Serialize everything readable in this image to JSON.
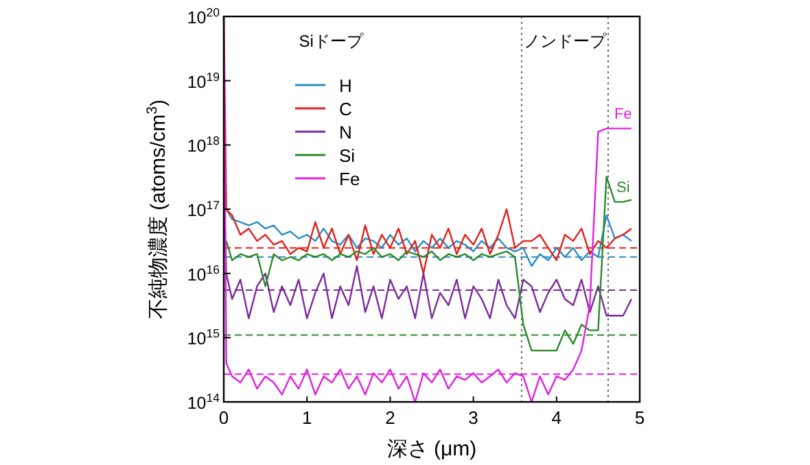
{
  "chart_data": {
    "type": "line",
    "xlabel": "深さ (μm)",
    "ylabel": "不純物濃度 (atoms/cm$^{3}$)",
    "log": "y",
    "grid": false,
    "legend": "top left",
    "line_style": "solid",
    "marker": "none",
    "xlim": [
      0,
      5
    ],
    "xticks": [
      0,
      1,
      2,
      3,
      4,
      5
    ],
    "ylim": [
      100000000000000.0,
      1e+20
    ],
    "yticks": [
      {
        "value": 100000000000000.0,
        "label": "10$^{14}$"
      },
      {
        "value": 1000000000000000.0,
        "label": "10$^{15}$"
      },
      {
        "value": 1e+16,
        "label": "10$^{16}$"
      },
      {
        "value": 1e+17,
        "label": "10$^{17}$"
      },
      {
        "value": 1e+18,
        "label": "10$^{18}$"
      },
      {
        "value": 1e+19,
        "label": "10$^{19}$"
      },
      {
        "value": 1e+20,
        "label": "10$^{20}$"
      }
    ],
    "x": [
      0,
      0.03,
      0.1,
      0.2,
      0.3,
      0.4,
      0.5,
      0.6,
      0.7,
      0.8,
      0.9,
      1.0,
      1.1,
      1.2,
      1.3,
      1.4,
      1.5,
      1.6,
      1.7,
      1.8,
      1.9,
      2.0,
      2.1,
      2.2,
      2.3,
      2.4,
      2.5,
      2.6,
      2.7,
      2.8,
      2.9,
      3.0,
      3.1,
      3.2,
      3.3,
      3.4,
      3.5,
      3.6,
      3.7,
      3.8,
      3.9,
      4.0,
      4.1,
      4.2,
      4.3,
      4.4,
      4.5,
      4.6,
      4.7,
      4.8,
      4.9
    ],
    "series": [
      {
        "name": "H",
        "color": "#2b8cc4",
        "values": [
          null,
          1e+17,
          7e+16,
          6.3e+16,
          5.6e+16,
          6.3e+16,
          5e+16,
          5.6e+16,
          4e+16,
          4.5e+16,
          3.5e+16,
          4e+16,
          3.2e+16,
          5e+16,
          3.2e+16,
          2.8e+16,
          4e+16,
          2.5e+16,
          3.5e+16,
          3.2e+16,
          2.5e+16,
          4e+16,
          2.8e+16,
          3.5e+16,
          2.2e+16,
          3.2e+16,
          2.5e+16,
          3.5e+16,
          2.5e+16,
          3.2e+16,
          2.8e+16,
          2.2e+16,
          3.2e+16,
          2.5e+16,
          3.5e+16,
          2.5e+16,
          2.2e+16,
          2.5e+16,
          1.3e+16,
          2e+16,
          1.6e+16,
          2.5e+16,
          1.8e+16,
          2.5e+16,
          1.6e+16,
          2.2e+16,
          1.8e+16,
          8e+16,
          3.5e+16,
          4e+16,
          3.2e+16
        ]
      },
      {
        "name": "C",
        "color": "#e0201b",
        "values": [
          1e+20,
          1e+17,
          8e+16,
          4e+16,
          5e+16,
          3.2e+16,
          4e+16,
          2.8e+16,
          3.2e+16,
          2e+16,
          2.5e+16,
          2.2e+16,
          6.3e+16,
          2.5e+16,
          5e+16,
          2e+16,
          4e+16,
          1.6e+16,
          5.6e+16,
          2e+16,
          4e+16,
          2.5e+16,
          5e+16,
          2e+16,
          3.2e+16,
          1e+16,
          4e+16,
          2.5e+16,
          5e+16,
          2e+16,
          4e+16,
          2.8e+16,
          5e+16,
          2e+16,
          4e+16,
          1e+17,
          2.5e+16,
          3.2e+16,
          3.2e+16,
          4e+16,
          2.5e+16,
          1.6e+16,
          4e+16,
          3.2e+16,
          5e+16,
          2e+16,
          3.2e+16,
          2.5e+16,
          3.5e+16,
          4e+16,
          5e+16
        ]
      },
      {
        "name": "N",
        "color": "#7b2a9a",
        "values": [
          3e+17,
          1e+16,
          4000000000000000.0,
          8000000000000000.0,
          2000000000000000.0,
          6300000000000000.0,
          1e+16,
          2500000000000000.0,
          6300000000000000.0,
          3200000000000000.0,
          8000000000000000.0,
          2000000000000000.0,
          5000000000000000.0,
          1e+16,
          2000000000000000.0,
          6300000000000000.0,
          3200000000000000.0,
          1.3e+16,
          2500000000000000.0,
          6300000000000000.0,
          2000000000000000.0,
          8000000000000000.0,
          4000000000000000.0,
          6300000000000000.0,
          2000000000000000.0,
          1e+16,
          2000000000000000.0,
          5000000000000000.0,
          3200000000000000.0,
          8000000000000000.0,
          2000000000000000.0,
          6300000000000000.0,
          4000000000000000.0,
          2000000000000000.0,
          8000000000000000.0,
          3200000000000000.0,
          2000000000000000.0,
          8000000000000000.0,
          6300000000000000.0,
          2500000000000000.0,
          5000000000000000.0,
          8000000000000000.0,
          4000000000000000.0,
          3200000000000000.0,
          8000000000000000.0,
          2500000000000000.0,
          6300000000000000.0,
          2200000000000000.0,
          2200000000000000.0,
          2200000000000000.0,
          4000000000000000.0
        ]
      },
      {
        "name": "Si",
        "color": "#2a8a2a",
        "values": [
          null,
          3.2e+16,
          1.6e+16,
          2e+16,
          1.8e+16,
          2e+16,
          6300000000000000.0,
          2e+16,
          1.6e+16,
          1.8e+16,
          1.6e+16,
          2e+16,
          1.8e+16,
          2e+16,
          1.6e+16,
          2e+16,
          1.8e+16,
          2.2e+16,
          2e+16,
          2.5e+16,
          1.8e+16,
          2e+16,
          1.6e+16,
          2.2e+16,
          2e+16,
          1.8e+16,
          2.2e+16,
          1.6e+16,
          2e+16,
          1.8e+16,
          2e+16,
          1.6e+16,
          2e+16,
          1.8e+16,
          2e+16,
          2.2e+16,
          1.8e+16,
          1600000000000000.0,
          630000000000000.0,
          630000000000000.0,
          630000000000000.0,
          630000000000000.0,
          1300000000000000.0,
          800000000000000.0,
          1600000000000000.0,
          1300000000000000.0,
          1300000000000000.0,
          3.2e+17,
          1.3e+17,
          1.3e+17,
          1.4e+17
        ]
      },
      {
        "name": "Fe",
        "color": "#e020e0",
        "values": [
          1e+20,
          400000000000000.0,
          250000000000000.0,
          200000000000000.0,
          320000000000000.0,
          160000000000000.0,
          250000000000000.0,
          200000000000000.0,
          130000000000000.0,
          250000000000000.0,
          160000000000000.0,
          320000000000000.0,
          130000000000000.0,
          250000000000000.0,
          200000000000000.0,
          320000000000000.0,
          160000000000000.0,
          250000000000000.0,
          130000000000000.0,
          280000000000000.0,
          200000000000000.0,
          320000000000000.0,
          160000000000000.0,
          250000000000000.0,
          100000000000000.0,
          280000000000000.0,
          200000000000000.0,
          320000000000000.0,
          160000000000000.0,
          250000000000000.0,
          220000000000000.0,
          280000000000000.0,
          200000000000000.0,
          250000000000000.0,
          320000000000000.0,
          200000000000000.0,
          280000000000000.0,
          250000000000000.0,
          100000000000000.0,
          250000000000000.0,
          130000000000000.0,
          250000000000000.0,
          220000000000000.0,
          320000000000000.0,
          630000000000000.0,
          3200000000000000.0,
          1.6e+18,
          1.8e+18,
          1.8e+18,
          1.8e+18,
          1.8e+18
        ]
      }
    ],
    "ref_lines": [
      {
        "axis": "y",
        "value": 2.5e+16,
        "color": "#e0201b",
        "line_style": "dashed"
      },
      {
        "axis": "y",
        "value": 1.8e+16,
        "color": "#2b8cc4",
        "line_style": "dashed"
      },
      {
        "axis": "y",
        "value": 5500000000000000.0,
        "color": "#7b2a9a",
        "line_style": "dashed"
      },
      {
        "axis": "y",
        "value": 1100000000000000.0,
        "color": "#2a8a2a",
        "line_style": "dashed"
      },
      {
        "axis": "y",
        "value": 270000000000000.0,
        "color": "#e020e0",
        "line_style": "dashed"
      },
      {
        "axis": "x",
        "value": 3.58,
        "color": "#666666",
        "line_style": "dotted"
      },
      {
        "axis": "x",
        "value": 4.62,
        "color": "#666666",
        "line_style": "dotted"
      }
    ],
    "annotations": [
      "Siドープ",
      "ノンドープ",
      {
        "text": "Fe",
        "x": 4.8,
        "y": 1.8e+18
      },
      {
        "text": "Si",
        "x": 4.8,
        "y": 1.3e+17
      }
    ]
  }
}
